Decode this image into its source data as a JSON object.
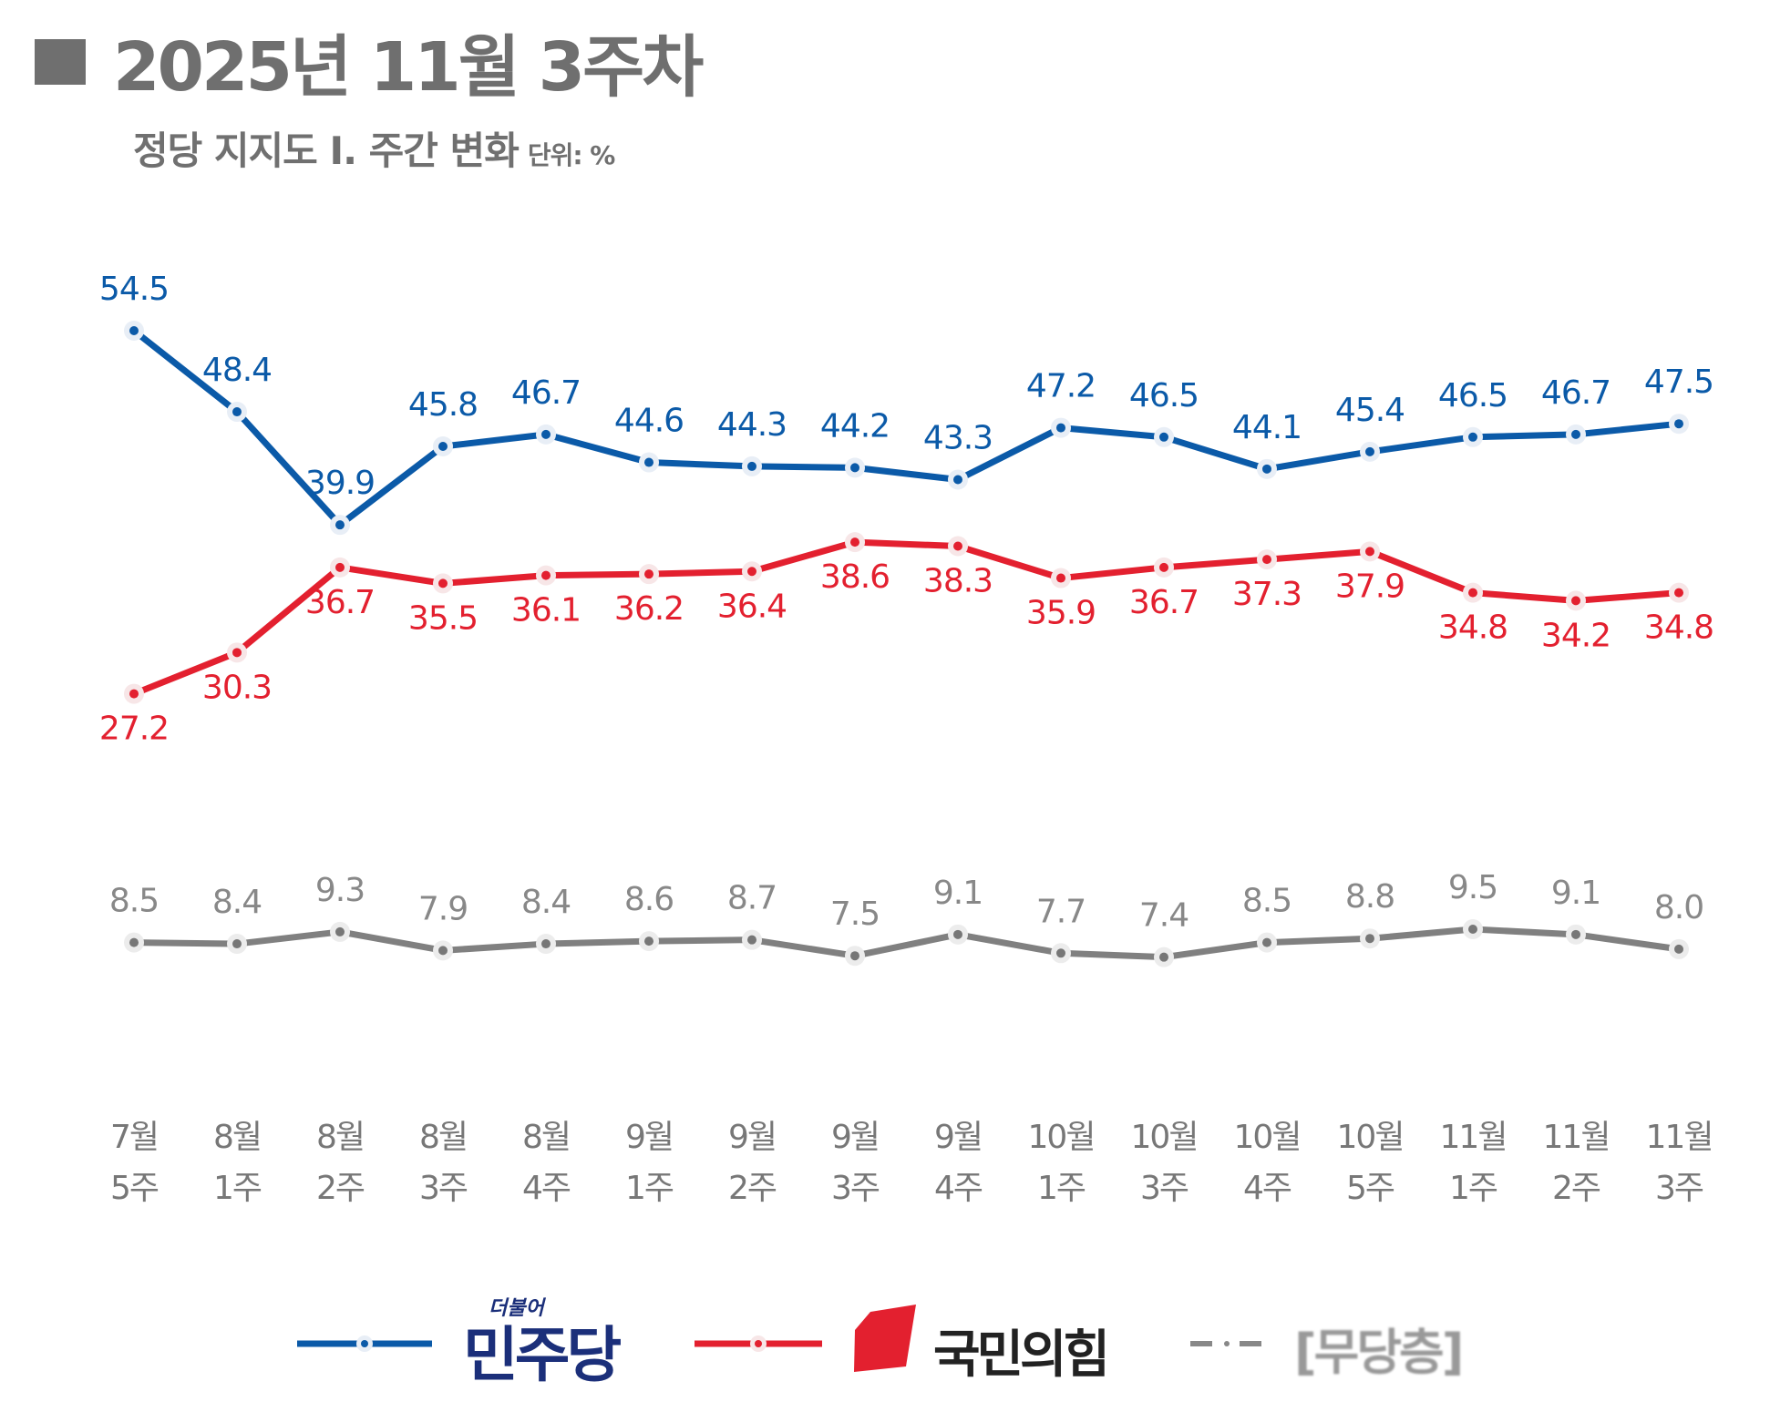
{
  "title": "2025년 11월 3주차",
  "subtitle": "정당 지지도 Ⅰ. 주간 변화",
  "unit": "단위: %",
  "chart_data": {
    "type": "line",
    "title": "2025년 11월 3주차",
    "subtitle": "정당 지지도 Ⅰ. 주간 변화",
    "unit": "%",
    "categories": [
      [
        "7월",
        "5주"
      ],
      [
        "8월",
        "1주"
      ],
      [
        "8월",
        "2주"
      ],
      [
        "8월",
        "3주"
      ],
      [
        "8월",
        "4주"
      ],
      [
        "9월",
        "1주"
      ],
      [
        "9월",
        "2주"
      ],
      [
        "9월",
        "3주"
      ],
      [
        "9월",
        "4주"
      ],
      [
        "10월",
        "1주"
      ],
      [
        "10월",
        "3주"
      ],
      [
        "10월",
        "4주"
      ],
      [
        "10월",
        "5주"
      ],
      [
        "11월",
        "1주"
      ],
      [
        "11월",
        "2주"
      ],
      [
        "11월",
        "3주"
      ]
    ],
    "series": [
      {
        "name": "더불어민주당",
        "color": "#0b5aa8",
        "values": [
          54.5,
          48.4,
          39.9,
          45.8,
          46.7,
          44.6,
          44.3,
          44.2,
          43.3,
          47.2,
          46.5,
          44.1,
          45.4,
          46.5,
          46.7,
          47.5
        ]
      },
      {
        "name": "국민의힘",
        "color": "#e3202f",
        "values": [
          27.2,
          30.3,
          36.7,
          35.5,
          36.1,
          36.2,
          36.4,
          38.6,
          38.3,
          35.9,
          36.7,
          37.3,
          37.9,
          34.8,
          34.2,
          34.8
        ]
      },
      {
        "name": "[무당층]",
        "color": "#808080",
        "values": [
          8.5,
          8.4,
          9.3,
          7.9,
          8.4,
          8.6,
          8.7,
          7.5,
          9.1,
          7.7,
          7.4,
          8.5,
          8.8,
          9.5,
          9.1,
          8.0
        ]
      }
    ],
    "grid": false,
    "legend_position": "bottom"
  },
  "legend": {
    "dem_small": "더불어",
    "dem": "민주당",
    "ppp": "국민의힘",
    "none": "[무당층]"
  }
}
